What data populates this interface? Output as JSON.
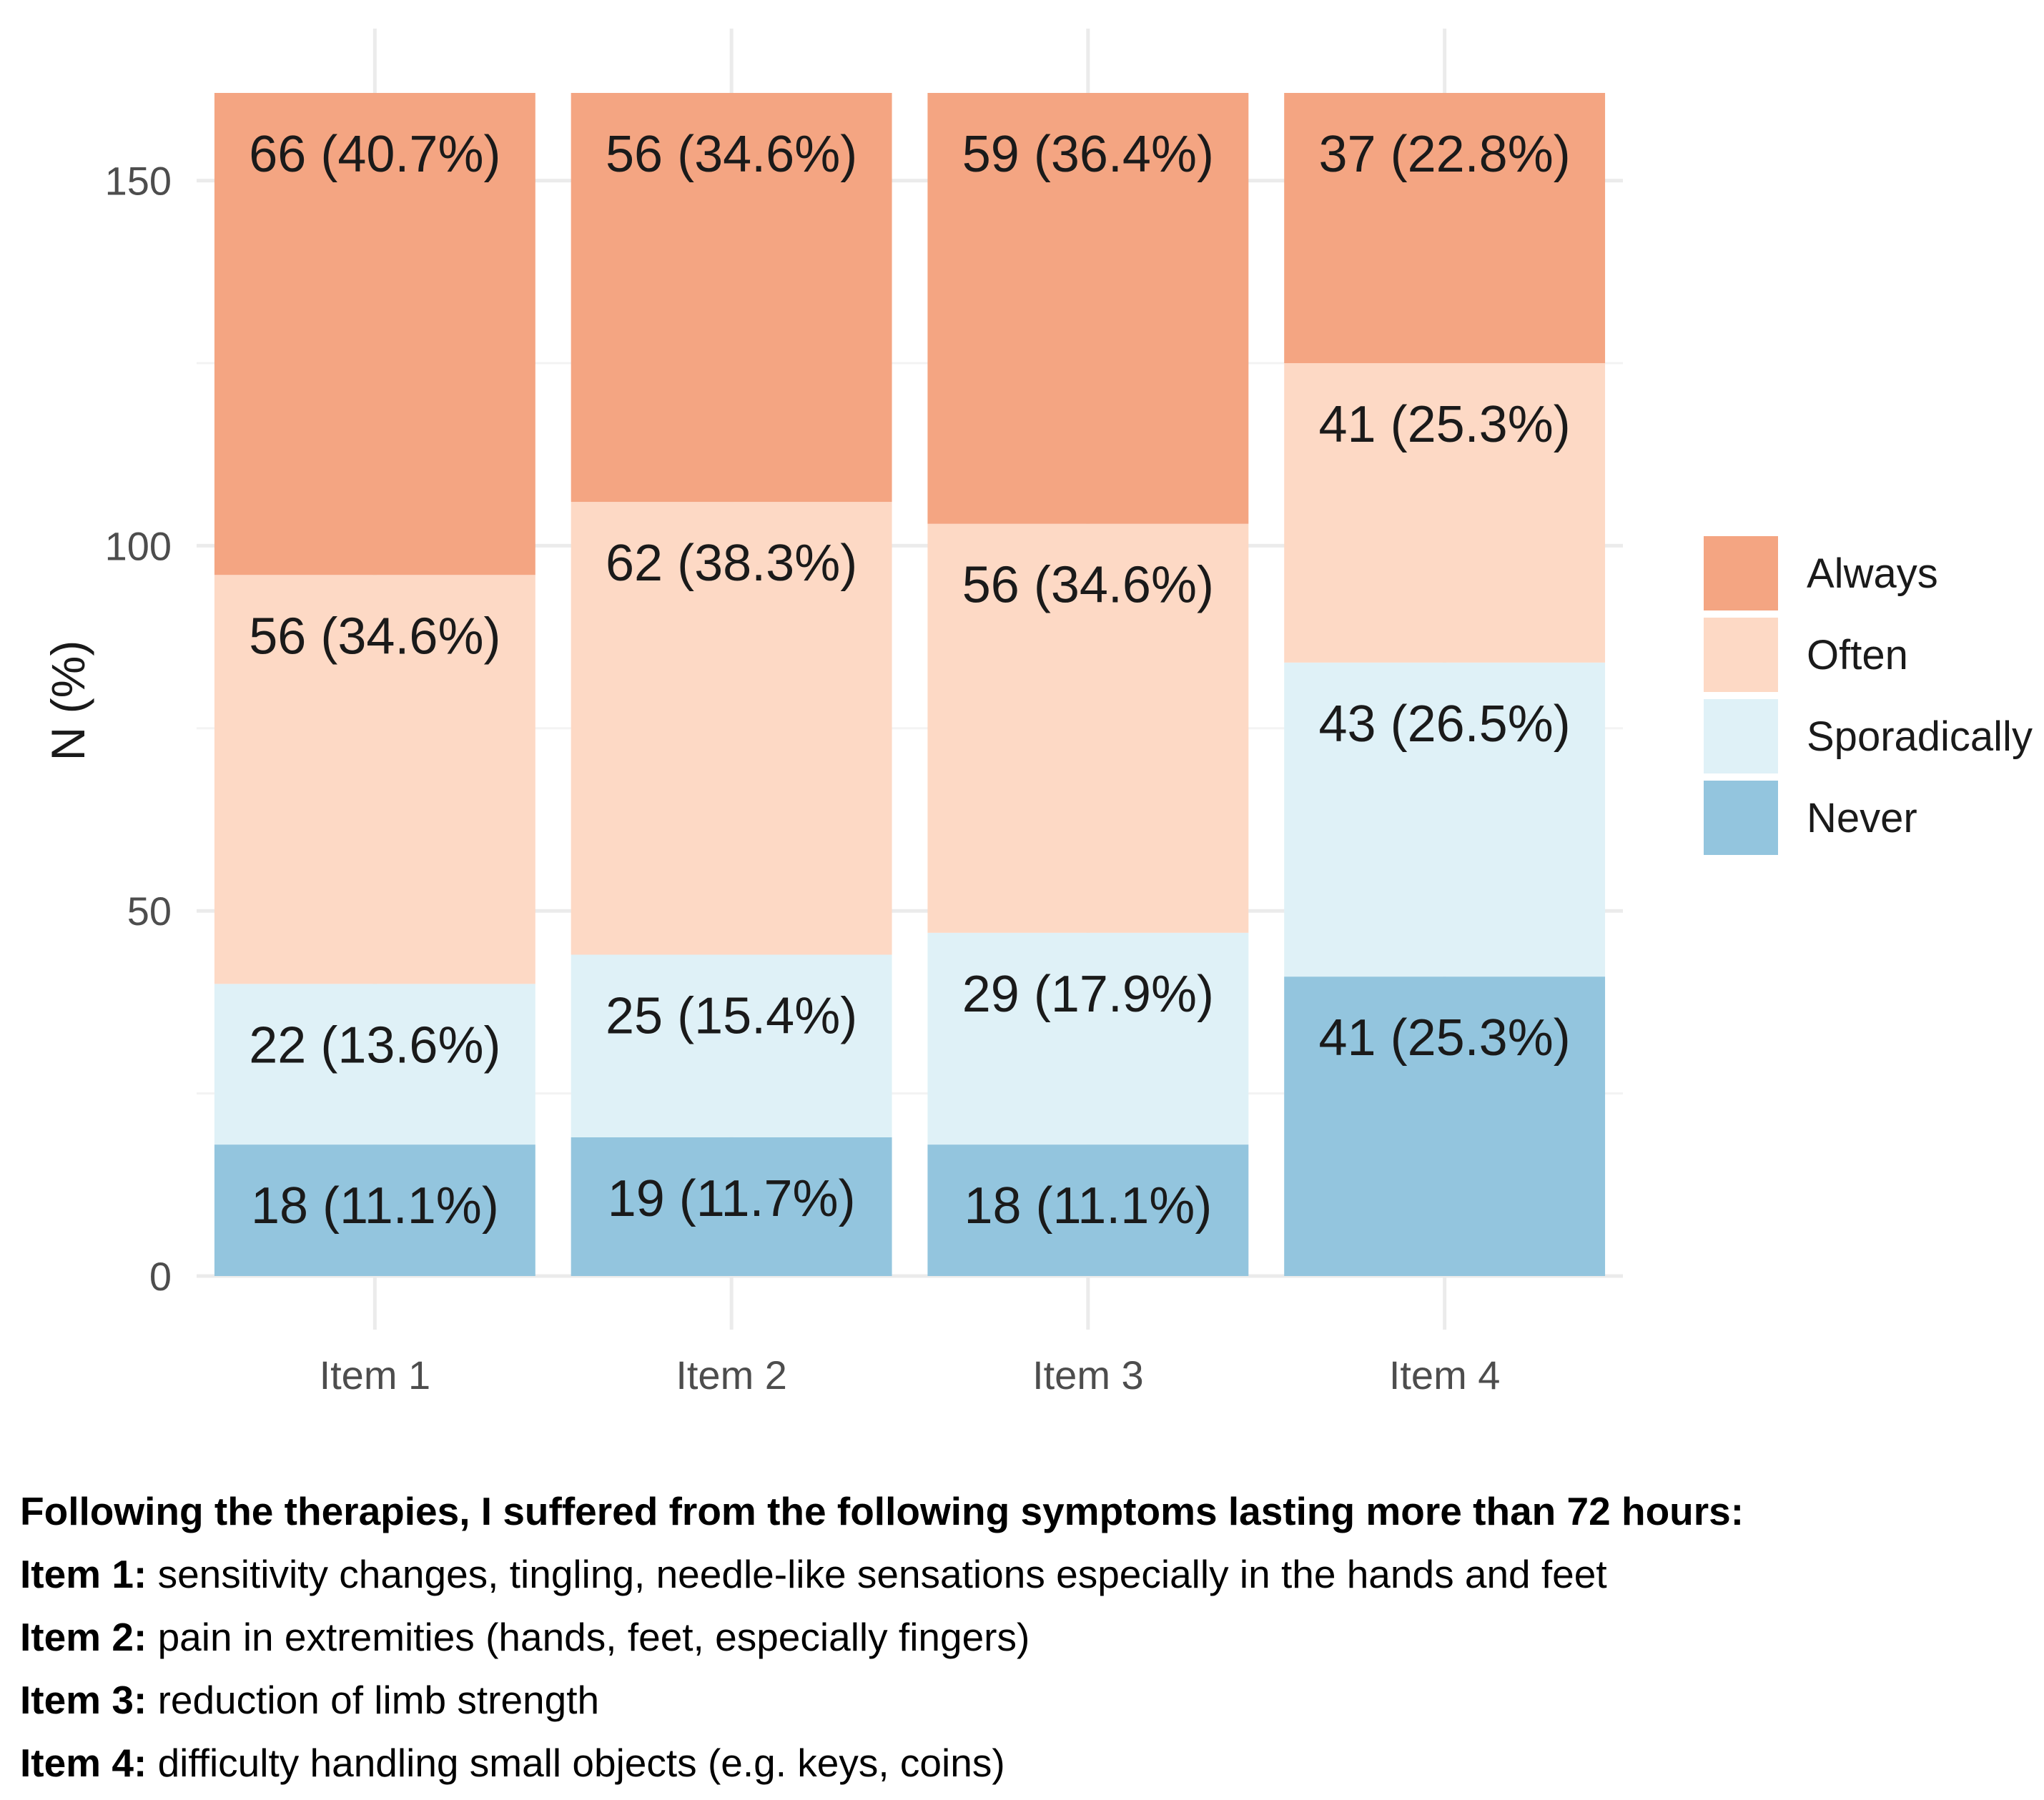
{
  "chart_data": {
    "type": "bar",
    "stacked": true,
    "categories": [
      "Item 1",
      "Item 2",
      "Item 3",
      "Item 4"
    ],
    "series": [
      {
        "name": "Never",
        "color": "#93c5de",
        "values": [
          18,
          19,
          18,
          41
        ],
        "labels": [
          "18 (11.1%)",
          "19 (11.7%)",
          "18 (11.1%)",
          "41 (25.3%)"
        ]
      },
      {
        "name": "Sporadically",
        "color": "#dff1f7",
        "values": [
          22,
          25,
          29,
          43
        ],
        "labels": [
          "22 (13.6%)",
          "25 (15.4%)",
          "29 (17.9%)",
          "43 (26.5%)"
        ]
      },
      {
        "name": "Often",
        "color": "#fdd9c5",
        "values": [
          56,
          62,
          56,
          41
        ],
        "labels": [
          "56 (34.6%)",
          "62 (38.3%)",
          "56 (34.6%)",
          "41 (25.3%)"
        ]
      },
      {
        "name": "Always",
        "color": "#f4a582",
        "values": [
          66,
          56,
          59,
          37
        ],
        "labels": [
          "66 (40.7%)",
          "56 (34.6%)",
          "59 (36.4%)",
          "37 (22.8%)"
        ]
      }
    ],
    "legend_order": [
      "Always",
      "Often",
      "Sporadically",
      "Never"
    ],
    "ylabel": "N (%)",
    "xlabel": "",
    "ylim": [
      0,
      162
    ],
    "yticks": [
      0,
      50,
      100,
      150
    ],
    "grid": true,
    "legend_position": "right"
  },
  "caption": {
    "title": "Following the therapies, I suffered from the following symptoms lasting more than 72 hours:",
    "items": [
      {
        "label": "Item 1:",
        "text": "sensitivity changes, tingling, needle-like sensations especially in the hands and feet"
      },
      {
        "label": "Item 2:",
        "text": "pain in extremities (hands, feet, especially fingers)"
      },
      {
        "label": "Item 3:",
        "text": "reduction of limb strength"
      },
      {
        "label": "Item 4:",
        "text": "difficulty handling small objects (e.g. keys, coins)"
      }
    ]
  }
}
